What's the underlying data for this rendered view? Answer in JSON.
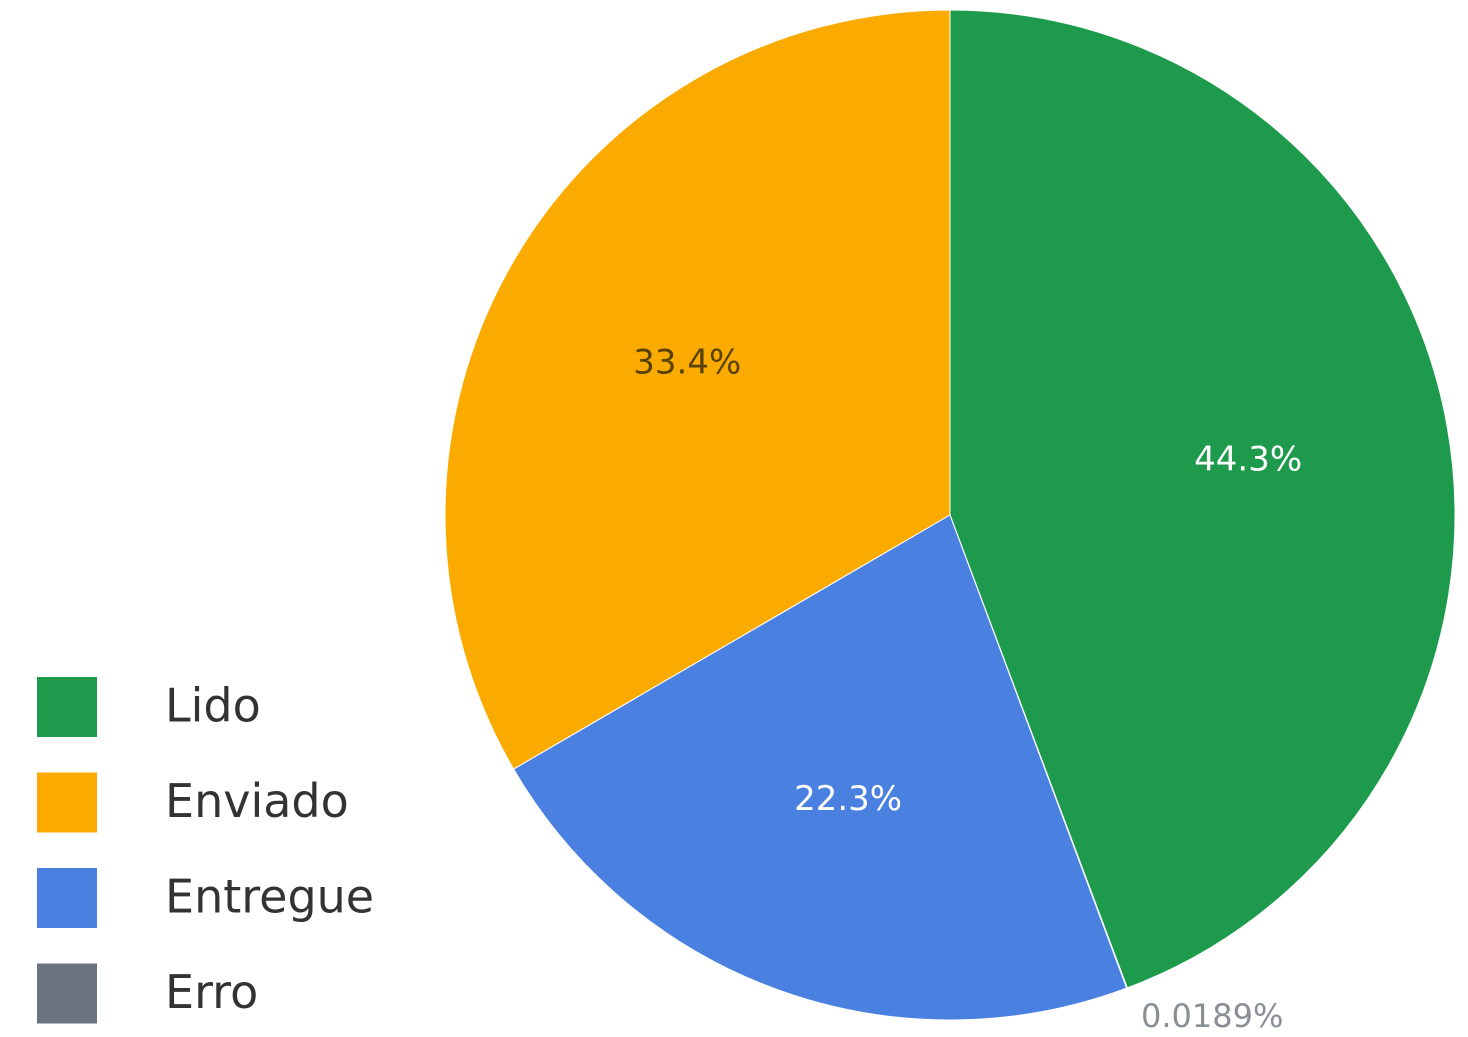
{
  "chart_data": {
    "type": "pie",
    "categories": [
      "Lido",
      "Enviado",
      "Entregue",
      "Erro"
    ],
    "values": [
      44.3,
      33.4,
      22.3,
      0.0189
    ],
    "value_labels": [
      "44.3%",
      "33.4%",
      "22.3%",
      "0.0189%"
    ],
    "colors": [
      "#1e9a4d",
      "#fbab00",
      "#4a80e0",
      "#6b7280"
    ],
    "legend": "left-bottom"
  }
}
